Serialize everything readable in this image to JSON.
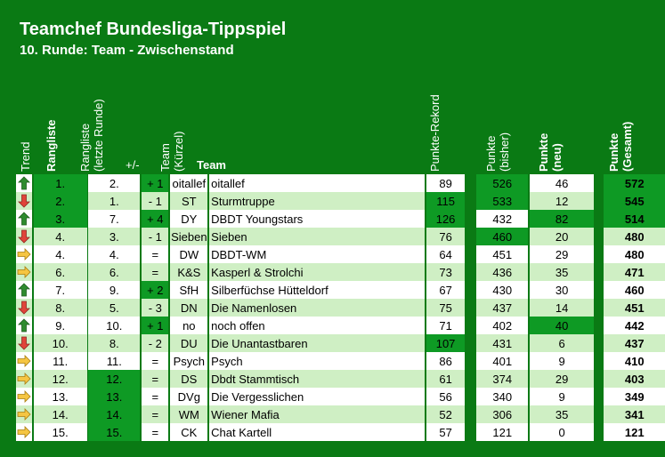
{
  "title": "Teamchef Bundesliga-Tippspiel",
  "subtitle": "10. Runde: Team - Zwischenstand",
  "headers": {
    "trend": "Trend",
    "rangliste": "Rangliste",
    "letzte_1": "Rangliste",
    "letzte_2": "(letzte Runde)",
    "pm": "+/-",
    "kurz_1": "Team",
    "kurz_2": "(Kürzel)",
    "team": "Team",
    "rekord": "Punkte-Rekord",
    "bisher_1": "Punkte",
    "bisher_2": "(bisher)",
    "neu_1": "Punkte",
    "neu_2": "(neu)",
    "gesamt_1": "Punkte",
    "gesamt_2": "(Gesamt)"
  },
  "colors": {
    "background": "#0a7a14",
    "highlight": "#0e9a24",
    "row_alt": "#cfefc4",
    "arrow_up": "#2e8b2e",
    "arrow_down": "#e0443a",
    "arrow_side": "#f5c542"
  },
  "rows": [
    {
      "trend": "up",
      "rank": "1.",
      "last": "2.",
      "pm": "+ 1",
      "abbr": "oitallef",
      "name": "oitallef",
      "rekord": "89",
      "bisher": "526",
      "neu": "46",
      "gesamt": "572",
      "hl": [
        "rank",
        "pm",
        "bisher",
        "gesamt"
      ]
    },
    {
      "trend": "down",
      "rank": "2.",
      "last": "1.",
      "pm": "- 1",
      "abbr": "ST",
      "name": "Sturmtruppe",
      "rekord": "115",
      "bisher": "533",
      "neu": "12",
      "gesamt": "545",
      "hl": [
        "rank",
        "rekord",
        "bisher",
        "gesamt"
      ]
    },
    {
      "trend": "up",
      "rank": "3.",
      "last": "7.",
      "pm": "+ 4",
      "abbr": "DY",
      "name": "DBDT Youngstars",
      "rekord": "126",
      "bisher": "432",
      "neu": "82",
      "gesamt": "514",
      "hl": [
        "rank",
        "pm",
        "rekord",
        "neu",
        "gesamt"
      ]
    },
    {
      "trend": "down",
      "rank": "4.",
      "last": "3.",
      "pm": "- 1",
      "abbr": "Sieben",
      "name": "Sieben",
      "rekord": "76",
      "bisher": "460",
      "neu": "20",
      "gesamt": "480",
      "hl": [
        "bisher"
      ]
    },
    {
      "trend": "side",
      "rank": "4.",
      "last": "4.",
      "pm": "=",
      "abbr": "DW",
      "name": "DBDT-WM",
      "rekord": "64",
      "bisher": "451",
      "neu": "29",
      "gesamt": "480",
      "hl": []
    },
    {
      "trend": "side",
      "rank": "6.",
      "last": "6.",
      "pm": "=",
      "abbr": "K&S",
      "name": "Kasperl & Strolchi",
      "rekord": "73",
      "bisher": "436",
      "neu": "35",
      "gesamt": "471",
      "hl": []
    },
    {
      "trend": "up",
      "rank": "7.",
      "last": "9.",
      "pm": "+ 2",
      "abbr": "SfH",
      "name": "Silberfüchse Hütteldorf",
      "rekord": "67",
      "bisher": "430",
      "neu": "30",
      "gesamt": "460",
      "hl": [
        "pm"
      ]
    },
    {
      "trend": "down",
      "rank": "8.",
      "last": "5.",
      "pm": "- 3",
      "abbr": "DN",
      "name": "Die Namenlosen",
      "rekord": "75",
      "bisher": "437",
      "neu": "14",
      "gesamt": "451",
      "hl": []
    },
    {
      "trend": "up",
      "rank": "9.",
      "last": "10.",
      "pm": "+ 1",
      "abbr": "no",
      "name": "noch offen",
      "rekord": "71",
      "bisher": "402",
      "neu": "40",
      "gesamt": "442",
      "hl": [
        "pm",
        "neu"
      ]
    },
    {
      "trend": "down",
      "rank": "10.",
      "last": "8.",
      "pm": "- 2",
      "abbr": "DU",
      "name": "Die Unantastbaren",
      "rekord": "107",
      "bisher": "431",
      "neu": "6",
      "gesamt": "437",
      "hl": [
        "rekord"
      ]
    },
    {
      "trend": "side",
      "rank": "11.",
      "last": "11.",
      "pm": "=",
      "abbr": "Psych",
      "name": "Psych",
      "rekord": "86",
      "bisher": "401",
      "neu": "9",
      "gesamt": "410",
      "hl": []
    },
    {
      "trend": "side",
      "rank": "12.",
      "last": "12.",
      "pm": "=",
      "abbr": "DS",
      "name": "Dbdt Stammtisch",
      "rekord": "61",
      "bisher": "374",
      "neu": "29",
      "gesamt": "403",
      "hl": [
        "last"
      ]
    },
    {
      "trend": "side",
      "rank": "13.",
      "last": "13.",
      "pm": "=",
      "abbr": "DVg",
      "name": "Die Vergesslichen",
      "rekord": "56",
      "bisher": "340",
      "neu": "9",
      "gesamt": "349",
      "hl": [
        "last"
      ]
    },
    {
      "trend": "side",
      "rank": "14.",
      "last": "14.",
      "pm": "=",
      "abbr": "WM",
      "name": "Wiener Mafia",
      "rekord": "52",
      "bisher": "306",
      "neu": "35",
      "gesamt": "341",
      "hl": [
        "last"
      ]
    },
    {
      "trend": "side",
      "rank": "15.",
      "last": "15.",
      "pm": "=",
      "abbr": "CK",
      "name": "Chat Kartell",
      "rekord": "57",
      "bisher": "121",
      "neu": "0",
      "gesamt": "121",
      "hl": [
        "last"
      ]
    }
  ]
}
